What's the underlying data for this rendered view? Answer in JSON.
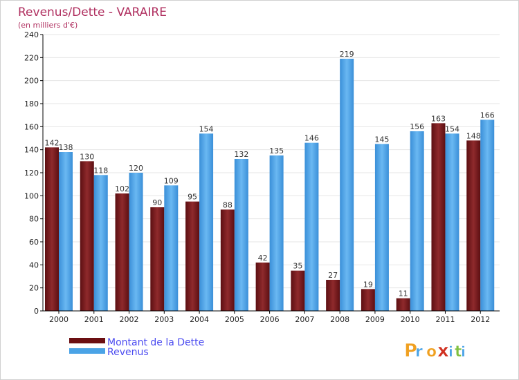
{
  "chart_data": {
    "type": "bar",
    "title": "Revenus/Dette - VARAIRE",
    "subtitle": "(en milliers d'€)",
    "categories": [
      "2000",
      "2001",
      "2002",
      "2003",
      "2004",
      "2005",
      "2006",
      "2007",
      "2008",
      "2009",
      "2010",
      "2011",
      "2012"
    ],
    "series": [
      {
        "name": "Montant de la Dette",
        "values": [
          142,
          130,
          102,
          90,
          95,
          88,
          42,
          35,
          27,
          19,
          11,
          163,
          148
        ],
        "color": "#7a1a1d"
      },
      {
        "name": "Revenus",
        "values": [
          138,
          118,
          120,
          109,
          154,
          132,
          135,
          146,
          219,
          145,
          156,
          154,
          166
        ],
        "color": "#4aa3e6"
      }
    ],
    "ylim": [
      0,
      240
    ],
    "yticks": [
      0,
      20,
      40,
      60,
      80,
      100,
      120,
      140,
      160,
      180,
      200,
      220,
      240
    ],
    "grid": true,
    "legend": "bottom-left"
  },
  "colors": {
    "title": "#b03060",
    "legend_text": "#4a4af0",
    "grid": "#e6e6e6",
    "axis": "#000000"
  },
  "brand": {
    "letters": [
      "P",
      "r",
      "o",
      "x",
      "i",
      "t",
      "i"
    ],
    "letter_colors": [
      "#f0a020",
      "#4aa3e6",
      "#f0a020",
      "#d03020",
      "#4aa3e6",
      "#80c040",
      "#4aa3e6"
    ]
  }
}
